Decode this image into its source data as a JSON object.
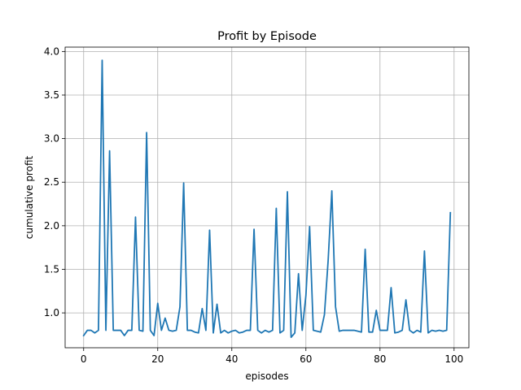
{
  "chart_data": {
    "type": "line",
    "title": "Profit by Episode",
    "xlabel": "episodes",
    "ylabel": "cumulative profit",
    "xlim": [
      -5,
      104
    ],
    "ylim": [
      0.6,
      4.05
    ],
    "xticks": [
      0,
      20,
      40,
      60,
      80,
      100
    ],
    "yticks": [
      1.0,
      1.5,
      2.0,
      2.5,
      3.0,
      3.5,
      4.0
    ],
    "xtick_labels": [
      "0",
      "20",
      "40",
      "60",
      "80",
      "100"
    ],
    "ytick_labels": [
      "1.0",
      "1.5",
      "2.0",
      "2.5",
      "3.0",
      "3.5",
      "4.0"
    ],
    "grid": true,
    "series": [
      {
        "color": "#1f77b4",
        "x": [
          0,
          1,
          2,
          3,
          4,
          5,
          6,
          7,
          8,
          9,
          10,
          11,
          12,
          13,
          14,
          15,
          16,
          17,
          18,
          19,
          20,
          21,
          22,
          23,
          24,
          25,
          26,
          27,
          28,
          29,
          30,
          31,
          32,
          33,
          34,
          35,
          36,
          37,
          38,
          39,
          40,
          41,
          42,
          43,
          44,
          45,
          46,
          47,
          48,
          49,
          50,
          51,
          52,
          53,
          54,
          55,
          56,
          57,
          58,
          59,
          60,
          61,
          62,
          63,
          64,
          65,
          66,
          67,
          68,
          69,
          70,
          71,
          72,
          73,
          74,
          75,
          76,
          77,
          78,
          79,
          80,
          81,
          82,
          83,
          84,
          85,
          86,
          87,
          88,
          89,
          90,
          91,
          92,
          93,
          94,
          95,
          96,
          97,
          98,
          99
        ],
        "values": [
          0.74,
          0.8,
          0.8,
          0.77,
          0.8,
          3.9,
          0.8,
          2.86,
          0.8,
          0.8,
          0.8,
          0.74,
          0.8,
          0.8,
          2.1,
          0.8,
          0.79,
          3.07,
          0.8,
          0.74,
          1.11,
          0.8,
          0.94,
          0.8,
          0.79,
          0.8,
          1.07,
          2.49,
          0.8,
          0.8,
          0.78,
          0.77,
          1.05,
          0.8,
          1.95,
          0.77,
          1.1,
          0.77,
          0.8,
          0.77,
          0.79,
          0.8,
          0.77,
          0.78,
          0.8,
          0.8,
          1.96,
          0.8,
          0.77,
          0.8,
          0.78,
          0.8,
          2.2,
          0.77,
          0.8,
          2.39,
          0.72,
          0.77,
          1.45,
          0.8,
          1.2,
          1.99,
          0.8,
          0.79,
          0.78,
          0.98,
          1.6,
          2.4,
          1.07,
          0.79,
          0.8,
          0.8,
          0.8,
          0.8,
          0.79,
          0.78,
          1.73,
          0.78,
          0.78,
          1.03,
          0.8,
          0.8,
          0.8,
          1.29,
          0.77,
          0.78,
          0.8,
          1.15,
          0.8,
          0.77,
          0.8,
          0.78,
          1.71,
          0.77,
          0.8,
          0.79,
          0.8,
          0.79,
          0.8,
          2.15
        ]
      }
    ]
  }
}
